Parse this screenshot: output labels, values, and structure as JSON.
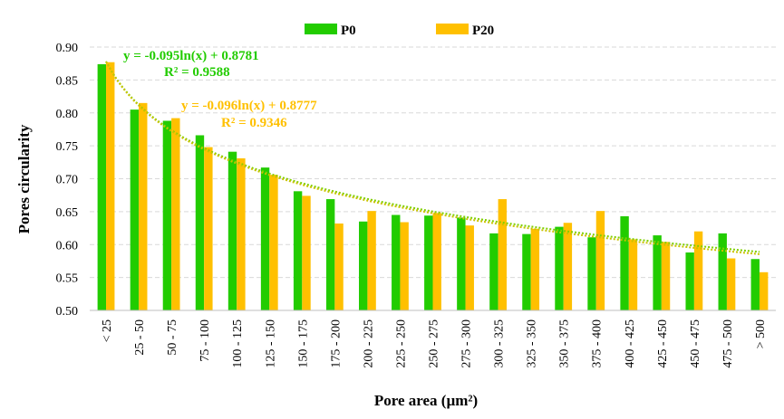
{
  "chart_data": {
    "type": "bar",
    "xlabel": "Pore area (µm²)",
    "ylabel": "Pores circularity",
    "ylim": [
      0.5,
      0.9
    ],
    "yticks": [
      "0.50",
      "0.55",
      "0.60",
      "0.65",
      "0.70",
      "0.75",
      "0.80",
      "0.85",
      "0.90"
    ],
    "grid": true,
    "legend_position": "top-center",
    "categories": [
      "< 25",
      "25 - 50",
      "50 - 75",
      "75 - 100",
      "100 - 125",
      "125 - 150",
      "150 - 175",
      "175 - 200",
      "200 - 225",
      "225 - 250",
      "250 - 275",
      "275 - 300",
      "300 - 325",
      "325 - 350",
      "350 - 375",
      "375 - 400",
      "400 - 425",
      "425 - 450",
      "450 - 475",
      "475 - 500",
      "> 500"
    ],
    "series": [
      {
        "name": "P0",
        "color": "#22CC00",
        "values": [
          0.874,
          0.805,
          0.788,
          0.766,
          0.741,
          0.717,
          0.681,
          0.669,
          0.635,
          0.645,
          0.644,
          0.641,
          0.617,
          0.616,
          0.627,
          0.611,
          0.643,
          0.614,
          0.588,
          0.617,
          0.578
        ]
      },
      {
        "name": "P20",
        "color": "#FFC000",
        "values": [
          0.877,
          0.815,
          0.792,
          0.748,
          0.731,
          0.706,
          0.674,
          0.632,
          0.651,
          0.634,
          0.648,
          0.629,
          0.669,
          0.624,
          0.633,
          0.651,
          0.608,
          0.604,
          0.62,
          0.579,
          0.558
        ]
      }
    ],
    "trendlines": [
      {
        "series": "P0",
        "type": "log",
        "a": -0.095,
        "b": 0.8781,
        "color": "#22CC00",
        "equation": "y = -0.095ln(x) + 0.8781",
        "r2": "R² = 0.9588"
      },
      {
        "series": "P20",
        "type": "log",
        "a": -0.096,
        "b": 0.8777,
        "color": "#FFC000",
        "equation": "y = -0.096ln(x) + 0.8777",
        "r2": "R² = 0.9346"
      }
    ]
  }
}
